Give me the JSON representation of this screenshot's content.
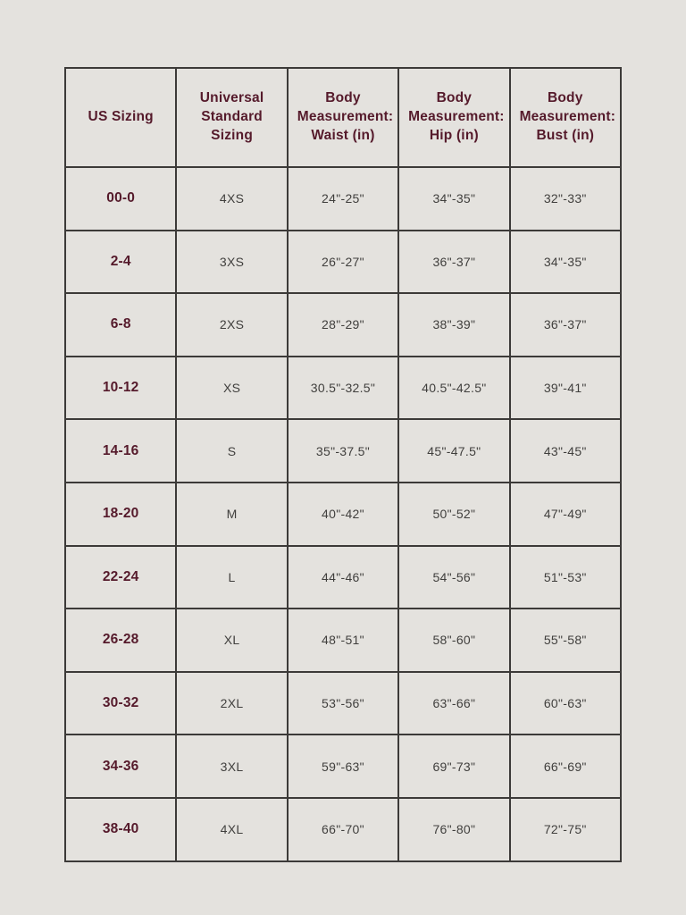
{
  "colors": {
    "background": "#e4e2de",
    "accent_maroon": "#551a2b",
    "cell_text": "#403f3d",
    "border": "#3c3a38"
  },
  "chart_data": {
    "type": "table",
    "columns": [
      "US Sizing",
      "Universal Standard Sizing",
      "Body Measurement: Waist (in)",
      "Body Measurement: Hip (in)",
      "Body Measurement: Bust (in)"
    ],
    "rows": [
      [
        "00-0",
        "4XS",
        "24\"-25\"",
        "34\"-35\"",
        "32\"-33\""
      ],
      [
        "2-4",
        "3XS",
        "26\"-27\"",
        "36\"-37\"",
        "34\"-35\""
      ],
      [
        "6-8",
        "2XS",
        "28\"-29\"",
        "38\"-39\"",
        "36\"-37\""
      ],
      [
        "10-12",
        "XS",
        "30.5\"-32.5\"",
        "40.5\"-42.5\"",
        "39\"-41\""
      ],
      [
        "14-16",
        "S",
        "35\"-37.5\"",
        "45\"-47.5\"",
        "43\"-45\""
      ],
      [
        "18-20",
        "M",
        "40\"-42\"",
        "50\"-52\"",
        "47\"-49\""
      ],
      [
        "22-24",
        "L",
        "44\"-46\"",
        "54\"-56\"",
        "51\"-53\""
      ],
      [
        "26-28",
        "XL",
        "48\"-51\"",
        "58\"-60\"",
        "55\"-58\""
      ],
      [
        "30-32",
        "2XL",
        "53\"-56\"",
        "63\"-66\"",
        "60\"-63\""
      ],
      [
        "34-36",
        "3XL",
        "59\"-63\"",
        "69\"-73\"",
        "66\"-69\""
      ],
      [
        "38-40",
        "4XL",
        "66\"-70\"",
        "76\"-80\"",
        "72\"-75\""
      ]
    ]
  }
}
